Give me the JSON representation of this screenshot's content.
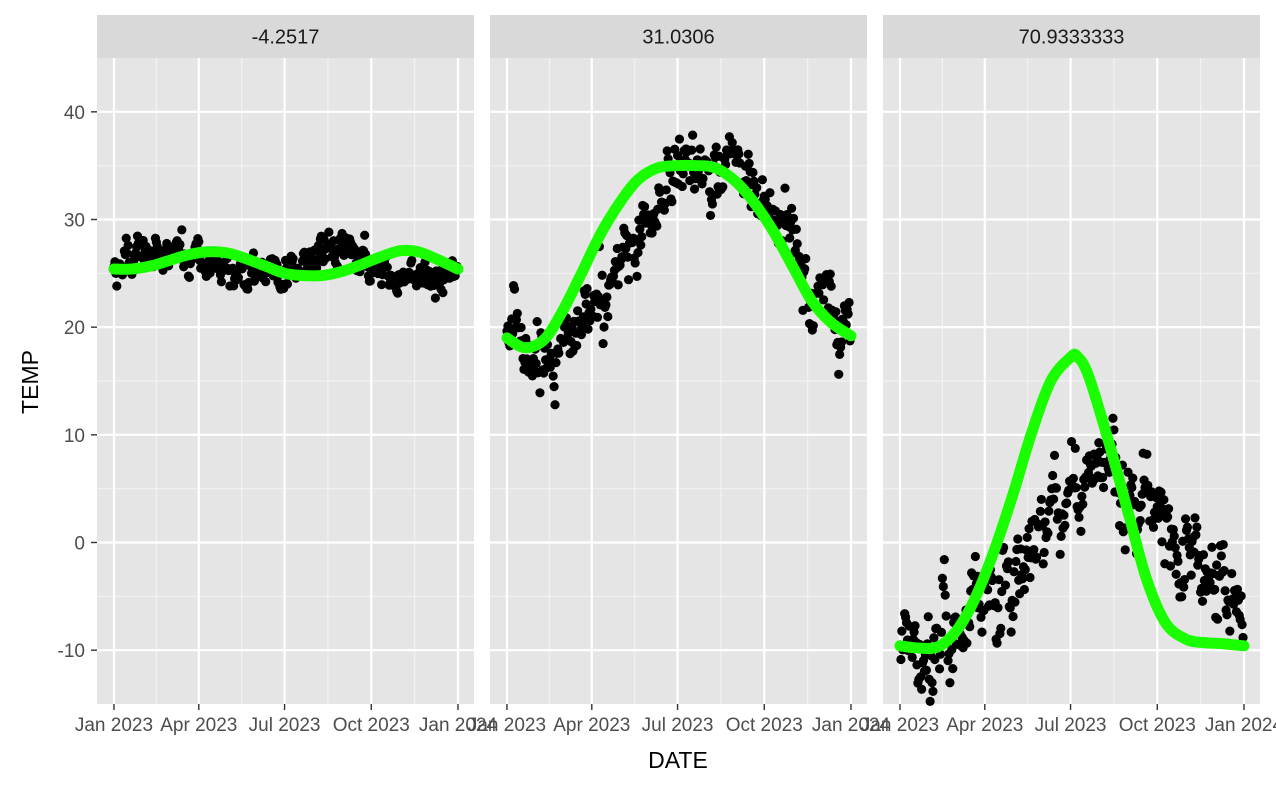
{
  "chart_data": {
    "type": "scatter",
    "xlabel": "DATE",
    "ylabel": "TEMP",
    "ylim": [
      -15,
      45
    ],
    "yticks": [
      -10,
      0,
      10,
      20,
      30,
      40
    ],
    "xticks": [
      "Jan 2023",
      "Apr 2023",
      "Jul 2023",
      "Oct 2023",
      "Jan 2024"
    ],
    "xtick_dates": [
      "2023-01-01",
      "2023-04-01",
      "2023-07-01",
      "2023-10-01",
      "2024-01-01"
    ],
    "xlim": [
      "2022-12-14",
      "2024-01-18"
    ],
    "grid": true,
    "point_color": "#000000",
    "line_color": "#1aff00",
    "panel_background": "#e5e5e5",
    "strip_background": "#d9d9d9",
    "panels": [
      {
        "label": "-4.2517",
        "scatter_model": {
          "mean": 25.9,
          "amp": 1.15,
          "cycles": 2,
          "phase_doy": 5,
          "noise": 1.0,
          "points": 365
        },
        "fit": {
          "x": [
            "2023-01-01",
            "2023-01-20",
            "2023-02-10",
            "2023-03-01",
            "2023-03-20",
            "2023-04-10",
            "2023-05-01",
            "2023-05-20",
            "2023-06-10",
            "2023-07-01",
            "2023-07-20",
            "2023-08-10",
            "2023-09-01",
            "2023-09-20",
            "2023-10-10",
            "2023-11-01",
            "2023-11-20",
            "2023-12-10",
            "2024-01-01"
          ],
          "y": [
            25.4,
            25.4,
            25.7,
            26.2,
            26.7,
            27.0,
            26.9,
            26.4,
            25.7,
            25.0,
            24.8,
            24.8,
            25.2,
            25.8,
            26.5,
            27.1,
            27.0,
            26.3,
            25.4
          ]
        }
      },
      {
        "label": "31.0306",
        "scatter_model": {
          "mean": 26.5,
          "amp": 8.6,
          "cycles": 1,
          "phase_doy": 125,
          "noise": 1.9,
          "points": 365
        },
        "fit": {
          "x": [
            "2023-01-01",
            "2023-01-20",
            "2023-02-10",
            "2023-03-01",
            "2023-03-20",
            "2023-04-10",
            "2023-05-01",
            "2023-05-20",
            "2023-06-10",
            "2023-07-01",
            "2023-07-20",
            "2023-08-10",
            "2023-09-01",
            "2023-09-20",
            "2023-10-10",
            "2023-11-01",
            "2023-11-20",
            "2023-12-10",
            "2024-01-01"
          ],
          "y": [
            19.0,
            18.1,
            18.9,
            21.5,
            24.8,
            28.6,
            31.6,
            33.7,
            34.8,
            35.0,
            35.0,
            34.8,
            33.5,
            31.6,
            29.0,
            25.5,
            22.5,
            20.5,
            19.2
          ]
        }
      },
      {
        "label": "70.9333333",
        "scatter_model": {
          "mean": -1.5,
          "amp": 7.5,
          "cycles": 1,
          "phase_doy": 130,
          "noise": 2.6,
          "points": 365
        },
        "fit": {
          "x": [
            "2023-01-01",
            "2023-01-20",
            "2023-02-10",
            "2023-03-01",
            "2023-03-20",
            "2023-04-10",
            "2023-05-01",
            "2023-05-20",
            "2023-06-10",
            "2023-07-01",
            "2023-07-08",
            "2023-07-20",
            "2023-08-10",
            "2023-09-01",
            "2023-09-20",
            "2023-10-10",
            "2023-11-01",
            "2023-11-20",
            "2023-12-10",
            "2024-01-01"
          ],
          "y": [
            -9.6,
            -9.8,
            -9.7,
            -8.3,
            -5.5,
            -1.0,
            4.5,
            10.0,
            15.0,
            17.2,
            17.3,
            15.5,
            9.5,
            2.5,
            -3.5,
            -7.5,
            -9.0,
            -9.3,
            -9.4,
            -9.6
          ]
        }
      }
    ]
  }
}
